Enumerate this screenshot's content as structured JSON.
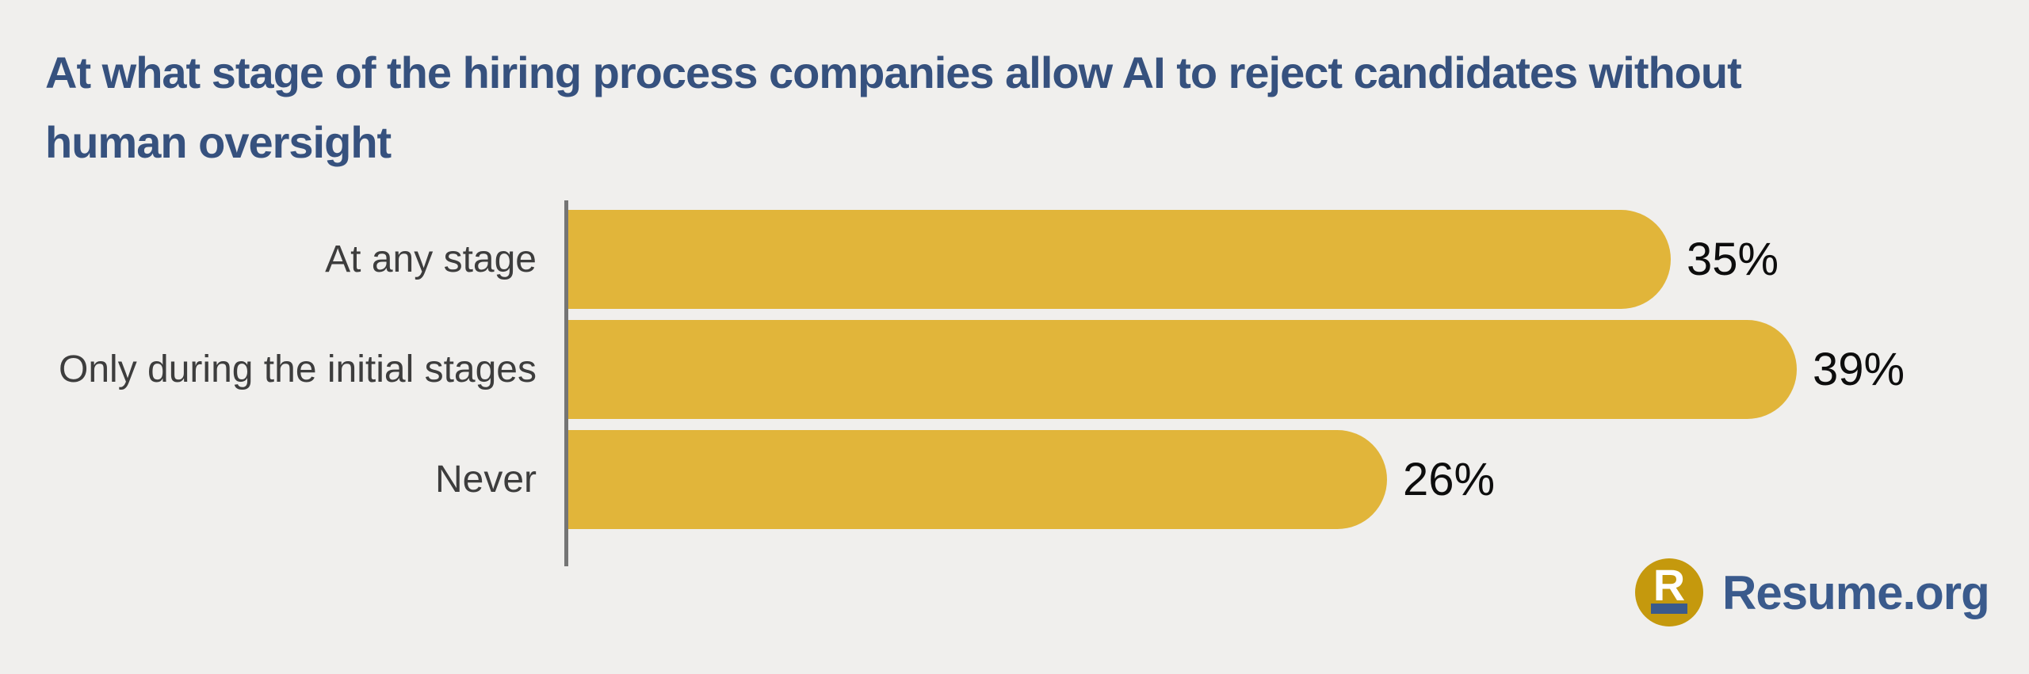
{
  "title_lines": [
    "At what stage of the hiring process companies allow AI to reject candidates without",
    "human oversight"
  ],
  "chart_data": {
    "type": "bar",
    "orientation": "horizontal",
    "title": "At what stage of the hiring process companies allow AI to reject candidates without human oversight",
    "categories": [
      "At any stage",
      "Only during the initial stages",
      "Never"
    ],
    "values": [
      35,
      39,
      26
    ],
    "value_labels": [
      "35%",
      "39%",
      "26%"
    ],
    "unit": "%",
    "xlim": [
      0,
      39
    ],
    "grid": false,
    "legend": false,
    "bar_color": "#e1b53a",
    "axis_line_color": "#757575",
    "title_color": "#36517e",
    "category_label_color": "#3d3d3d",
    "value_label_color": "#0d0d0d",
    "background_color": "#f0efed"
  },
  "logo": {
    "icon_letter": "R",
    "brand": "Resume.org",
    "circle_color": "#c5990d",
    "text_color": "#3a5a8c"
  }
}
